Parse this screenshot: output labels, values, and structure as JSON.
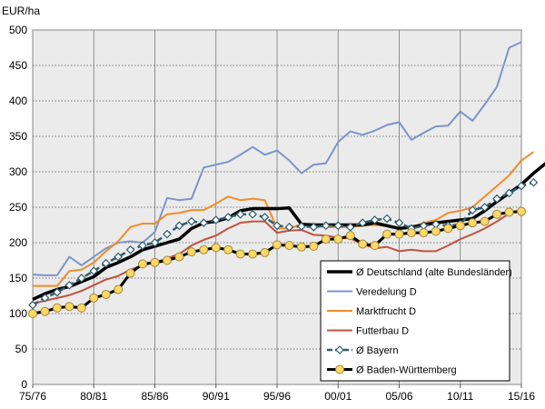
{
  "chart_data": {
    "type": "line",
    "ylabel": "EUR/ha",
    "ylim": [
      0,
      500
    ],
    "yticks": [
      0,
      50,
      100,
      150,
      200,
      250,
      300,
      350,
      400,
      450,
      500
    ],
    "x_start_year": 1975,
    "xtick_labels": [
      "75/76",
      "80/81",
      "85/86",
      "90/91",
      "95/96",
      "00/01",
      "05/06",
      "10/11",
      "15/16"
    ],
    "grid": "horizontal dotted and vertical gridlines, grey plot background",
    "legend_position": "bottom-right",
    "series": [
      {
        "name": "Ø Deutschland (alte Bundesländer)",
        "color": "#000000",
        "style": "thick",
        "values": [
          120,
          128,
          134,
          138,
          145,
          152,
          165,
          172,
          180,
          190,
          195,
          200,
          205,
          220,
          228,
          230,
          235,
          245,
          248,
          248,
          248,
          249,
          226,
          225,
          225,
          225,
          225,
          225,
          228,
          224,
          220,
          222,
          225,
          228,
          230,
          232,
          234,
          245,
          258,
          270,
          282,
          298,
          312
        ]
      },
      {
        "name": "Veredelung D",
        "color": "#7a95c9",
        "style": "thin",
        "values": [
          155,
          154,
          154,
          180,
          168,
          180,
          192,
          200,
          202,
          200,
          215,
          263,
          260,
          262,
          306,
          310,
          314,
          324,
          335,
          324,
          330,
          316,
          298,
          310,
          312,
          342,
          357,
          352,
          358,
          366,
          370,
          345,
          355,
          364,
          365,
          385,
          372,
          395,
          420,
          475,
          483
        ]
      },
      {
        "name": "Marktfrucht D",
        "color": "#f28c28",
        "style": "thin",
        "values": [
          139,
          139,
          139,
          160,
          162,
          172,
          188,
          202,
          222,
          227,
          227,
          240,
          242,
          246,
          246,
          255,
          265,
          260,
          262,
          260,
          220,
          220,
          226,
          224,
          222,
          222,
          222,
          224,
          225,
          223,
          220,
          222,
          228,
          232,
          242,
          245,
          250,
          265,
          280,
          295,
          316,
          328
        ]
      },
      {
        "name": "Futterbau D",
        "color": "#c0533f",
        "style": "thin",
        "values": [
          114,
          118,
          122,
          126,
          132,
          140,
          148,
          153,
          162,
          168,
          172,
          178,
          184,
          196,
          204,
          210,
          220,
          228,
          230,
          230,
          214,
          217,
          218,
          211,
          210,
          207,
          206,
          198,
          192,
          194,
          188,
          190,
          188,
          188,
          196,
          205,
          212,
          220,
          230,
          241
        ]
      },
      {
        "name": "Ø Bayern",
        "color": "#2f5d6e",
        "style": "dash-diamond",
        "values": [
          112,
          122,
          130,
          140,
          150,
          160,
          171,
          180,
          190,
          196,
          200,
          212,
          224,
          230,
          228,
          232,
          236,
          240,
          240,
          236,
          224,
          222,
          223,
          222,
          224,
          224,
          222,
          228,
          232,
          234,
          228,
          220,
          224,
          226,
          224,
          226,
          246,
          250,
          262,
          270,
          280,
          285
        ]
      },
      {
        "name": "Ø Baden-Württemberg",
        "color": "#000000",
        "style": "line-circle",
        "values": [
          100,
          103,
          108,
          110,
          108,
          122,
          127,
          134,
          157,
          170,
          172,
          175,
          180,
          187,
          190,
          193,
          190,
          184,
          184,
          186,
          197,
          196,
          194,
          195,
          205,
          205,
          210,
          198,
          196,
          212,
          212,
          214,
          214,
          216,
          220,
          224,
          228,
          230,
          240,
          243,
          244
        ]
      }
    ]
  }
}
